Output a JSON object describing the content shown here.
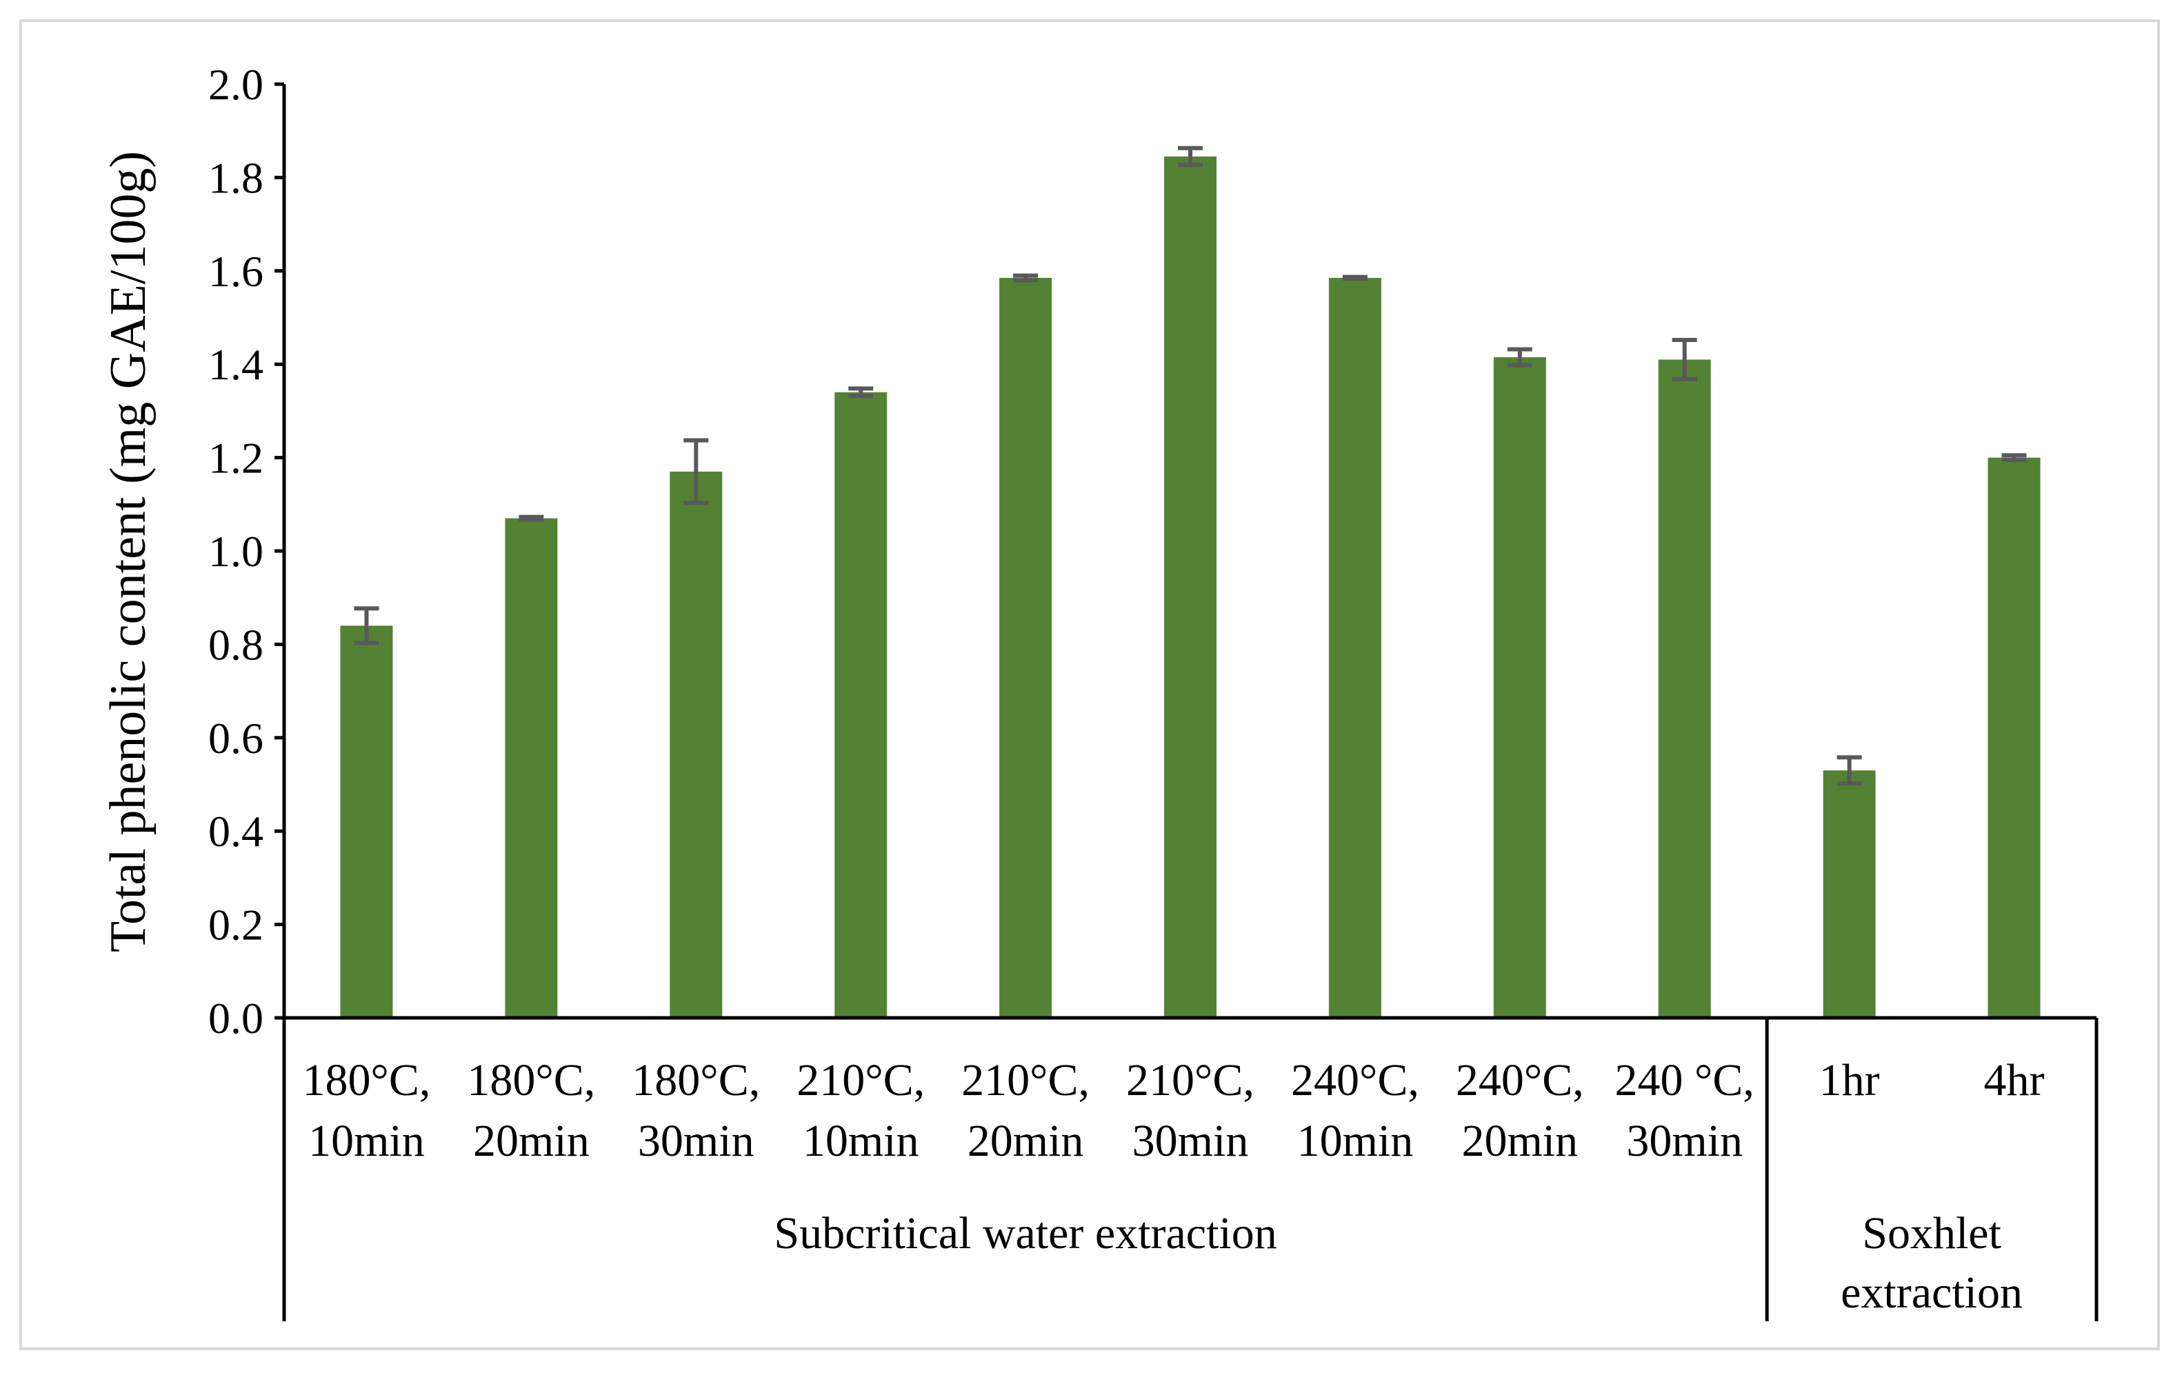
{
  "colors": {
    "bar": "#548235",
    "error_bar": "#595959",
    "axis": "#000000",
    "frame": "#d9d9d9"
  },
  "chart_data": {
    "type": "bar",
    "title": "",
    "xlabel": "",
    "ylabel": "Total phenolic content (mg GAE/100g)",
    "ylim": [
      0,
      2.0
    ],
    "yticks": [
      "0.0",
      "0.2",
      "0.4",
      "0.6",
      "0.8",
      "1.0",
      "1.2",
      "1.4",
      "1.6",
      "1.8",
      "2.0"
    ],
    "grid": false,
    "legend": "none",
    "categories": [
      [
        "180°C,",
        "10min"
      ],
      [
        "180°C,",
        "20min"
      ],
      [
        "180°C,",
        "30min"
      ],
      [
        "210°C,",
        "10min"
      ],
      [
        "210°C,",
        "20min"
      ],
      [
        "210°C,",
        "30min"
      ],
      [
        "240°C,",
        "10min"
      ],
      [
        "240°C,",
        "20min"
      ],
      [
        "240 °C,",
        "30min"
      ],
      [
        "1hr"
      ],
      [
        "4hr"
      ]
    ],
    "values": [
      0.84,
      1.07,
      1.17,
      1.34,
      1.585,
      1.845,
      1.585,
      1.415,
      1.41,
      0.53,
      1.2
    ],
    "errors": [
      0.037,
      0.003,
      0.067,
      0.008,
      0.005,
      0.018,
      0.002,
      0.017,
      0.042,
      0.028,
      0.005
    ],
    "groups": [
      {
        "label": [
          "Subcritical water extraction"
        ],
        "start": 0,
        "end": 8
      },
      {
        "label": [
          "Soxhlet",
          "extraction"
        ],
        "start": 9,
        "end": 10
      }
    ]
  }
}
